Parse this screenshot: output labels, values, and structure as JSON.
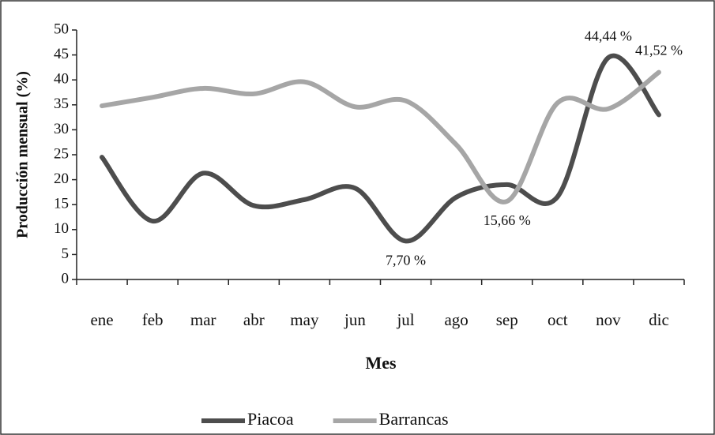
{
  "chart_data": {
    "type": "line",
    "y_label": "Producción mensual (%)",
    "x_label": "Mes",
    "categories": [
      "ene",
      "feb",
      "mar",
      "abr",
      "may",
      "jun",
      "jul",
      "ago",
      "sep",
      "oct",
      "nov",
      "dic"
    ],
    "series": [
      {
        "name": "Piacoa",
        "color": "#4d4d4d",
        "values": [
          24.5,
          11.7,
          21.3,
          14.8,
          16,
          18.3,
          7.7,
          16.5,
          19,
          16.6,
          44.44,
          33
        ],
        "value_labels": [
          null,
          null,
          null,
          null,
          null,
          null,
          "7,70 %",
          null,
          null,
          null,
          "44,44 %",
          null
        ]
      },
      {
        "name": "Barrancas",
        "color": "#a6a6a6",
        "values": [
          34.8,
          36.5,
          38.3,
          37.2,
          39.6,
          34.6,
          35.8,
          27,
          15.66,
          35.4,
          34.2,
          41.52
        ],
        "value_labels": [
          null,
          null,
          null,
          null,
          null,
          null,
          null,
          null,
          "15,66 %",
          null,
          null,
          "41,52 %"
        ]
      }
    ],
    "ylim": [
      0,
      50
    ],
    "yticks": [
      0,
      5,
      10,
      15,
      20,
      25,
      30,
      35,
      40,
      45,
      50
    ],
    "legend": "bottom"
  }
}
